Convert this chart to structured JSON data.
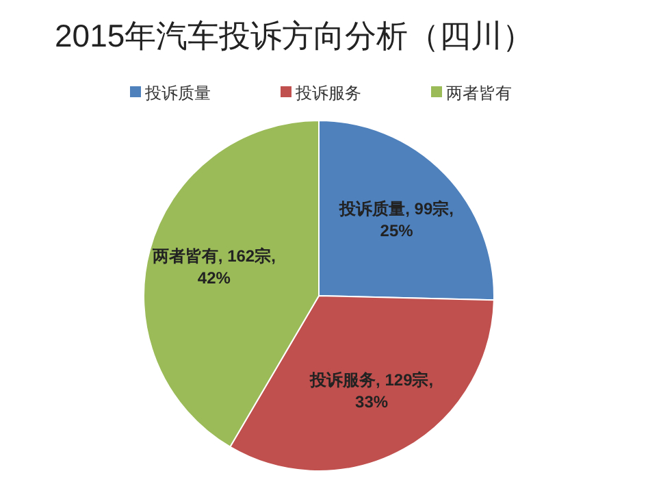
{
  "chart_data": {
    "type": "pie",
    "title": "2015年汽车投诉方向分析（四川）",
    "categories": [
      "投诉质量",
      "投诉服务",
      "两者皆有"
    ],
    "values": [
      99,
      129,
      162
    ],
    "colors": [
      "#4f81bd",
      "#c0504d",
      "#9bbb59"
    ],
    "value_labels": [
      "投诉质量, 99宗, 25%",
      "投诉服务, 129宗, 33%",
      "两者皆有, 162宗, 42%"
    ],
    "legend": "top"
  }
}
